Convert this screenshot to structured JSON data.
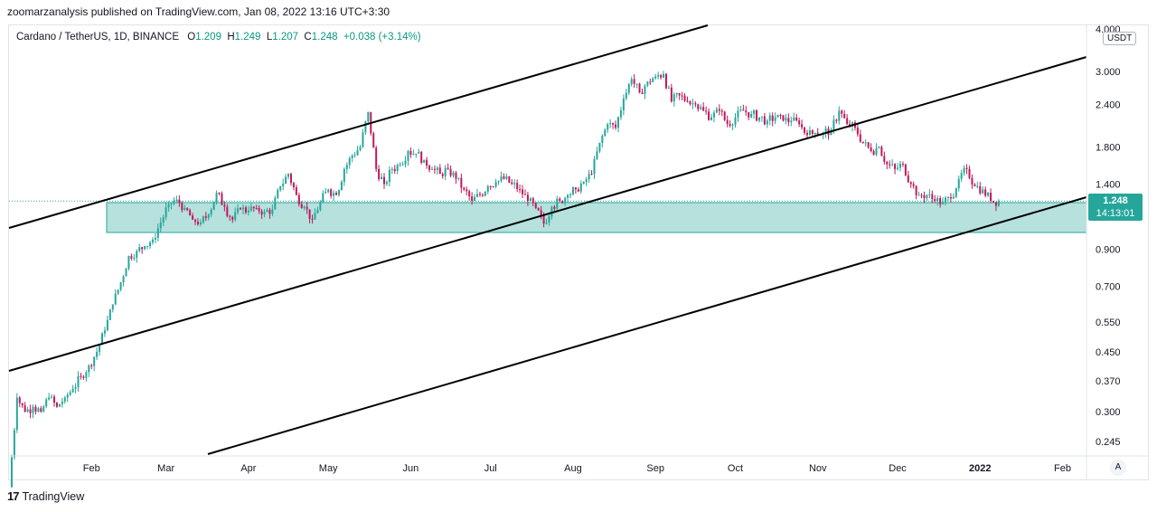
{
  "header": {
    "published_line": "zoomarzanalysis published on TradingView.com, Jan 08, 2022 13:16 UTC+3:30"
  },
  "legend": {
    "symbol": "Cardano / TetherUS, 1D, BINANCE",
    "open_label": "O",
    "open_value": "1.209",
    "high_label": "H",
    "high_value": "1.249",
    "low_label": "L",
    "low_value": "1.207",
    "close_label": "C",
    "close_value": "1.248",
    "change": "+0.038 (+3.14%)"
  },
  "price_axis": {
    "unit": "USDT",
    "current_price": "1.248",
    "countdown": "14:13:01"
  },
  "footer": {
    "brand": "TradingView",
    "auto_scale": "A"
  },
  "colors": {
    "up": "#26a69a",
    "down": "#c2185b",
    "zone_fill": "#b2dfdb",
    "zone_border": "#26a69a",
    "channel_lines": "#000000"
  },
  "chart_data": {
    "type": "candlestick",
    "scale": "log",
    "y_ticks": [
      "4.000",
      "3.000",
      "2.400",
      "1.800",
      "1.400",
      "0.900",
      "0.700",
      "0.550",
      "0.450",
      "0.370",
      "0.300",
      "0.245"
    ],
    "y_tick_values": [
      4.0,
      3.0,
      2.4,
      1.8,
      1.4,
      0.9,
      0.7,
      0.55,
      0.45,
      0.37,
      0.3,
      0.245
    ],
    "x_ticks": [
      {
        "label": "Feb",
        "date": "2021-02-01",
        "bold": false
      },
      {
        "label": "Mar",
        "date": "2021-03-01",
        "bold": false
      },
      {
        "label": "Apr",
        "date": "2021-04-01",
        "bold": false
      },
      {
        "label": "May",
        "date": "2021-05-01",
        "bold": false
      },
      {
        "label": "Jun",
        "date": "2021-06-01",
        "bold": false
      },
      {
        "label": "Jul",
        "date": "2021-07-01",
        "bold": false
      },
      {
        "label": "Aug",
        "date": "2021-08-01",
        "bold": false
      },
      {
        "label": "Sep",
        "date": "2021-09-01",
        "bold": false
      },
      {
        "label": "Oct",
        "date": "2021-10-01",
        "bold": false
      },
      {
        "label": "Nov",
        "date": "2021-11-01",
        "bold": false
      },
      {
        "label": "Dec",
        "date": "2021-12-01",
        "bold": false
      },
      {
        "label": "2022",
        "date": "2022-01-01",
        "bold": true
      },
      {
        "label": "Feb",
        "date": "2022-02-01",
        "bold": false
      }
    ],
    "date_range": [
      "2021-01-01",
      "2022-02-10"
    ],
    "price_range": [
      0.225,
      4.1
    ],
    "last_price": 1.248,
    "close_series": [
      {
        "date": "2021-01-01",
        "close": 0.18
      },
      {
        "date": "2021-01-04",
        "close": 0.33
      },
      {
        "date": "2021-01-07",
        "close": 0.3
      },
      {
        "date": "2021-01-10",
        "close": 0.31
      },
      {
        "date": "2021-01-13",
        "close": 0.3
      },
      {
        "date": "2021-01-16",
        "close": 0.33
      },
      {
        "date": "2021-01-19",
        "close": 0.31
      },
      {
        "date": "2021-01-22",
        "close": 0.33
      },
      {
        "date": "2021-01-25",
        "close": 0.35
      },
      {
        "date": "2021-01-28",
        "close": 0.38
      },
      {
        "date": "2021-01-31",
        "close": 0.41
      },
      {
        "date": "2021-02-03",
        "close": 0.45
      },
      {
        "date": "2021-02-06",
        "close": 0.52
      },
      {
        "date": "2021-02-09",
        "close": 0.62
      },
      {
        "date": "2021-02-12",
        "close": 0.72
      },
      {
        "date": "2021-02-15",
        "close": 0.86
      },
      {
        "date": "2021-02-18",
        "close": 0.89
      },
      {
        "date": "2021-02-21",
        "close": 0.92
      },
      {
        "date": "2021-02-24",
        "close": 0.96
      },
      {
        "date": "2021-02-27",
        "close": 1.08
      },
      {
        "date": "2021-03-02",
        "close": 1.22
      },
      {
        "date": "2021-03-05",
        "close": 1.26
      },
      {
        "date": "2021-03-08",
        "close": 1.19
      },
      {
        "date": "2021-03-11",
        "close": 1.1
      },
      {
        "date": "2021-03-14",
        "close": 1.08
      },
      {
        "date": "2021-03-17",
        "close": 1.14
      },
      {
        "date": "2021-03-20",
        "close": 1.32
      },
      {
        "date": "2021-03-23",
        "close": 1.2
      },
      {
        "date": "2021-03-26",
        "close": 1.1
      },
      {
        "date": "2021-03-29",
        "close": 1.18
      },
      {
        "date": "2021-04-01",
        "close": 1.17
      },
      {
        "date": "2021-04-04",
        "close": 1.19
      },
      {
        "date": "2021-04-07",
        "close": 1.16
      },
      {
        "date": "2021-04-10",
        "close": 1.18
      },
      {
        "date": "2021-04-13",
        "close": 1.38
      },
      {
        "date": "2021-04-16",
        "close": 1.5
      },
      {
        "date": "2021-04-19",
        "close": 1.3
      },
      {
        "date": "2021-04-22",
        "close": 1.2
      },
      {
        "date": "2021-04-25",
        "close": 1.1
      },
      {
        "date": "2021-04-28",
        "close": 1.24
      },
      {
        "date": "2021-05-01",
        "close": 1.35
      },
      {
        "date": "2021-05-04",
        "close": 1.3
      },
      {
        "date": "2021-05-07",
        "close": 1.55
      },
      {
        "date": "2021-05-10",
        "close": 1.7
      },
      {
        "date": "2021-05-13",
        "close": 1.8
      },
      {
        "date": "2021-05-16",
        "close": 2.28
      },
      {
        "date": "2021-05-19",
        "close": 1.55
      },
      {
        "date": "2021-05-22",
        "close": 1.4
      },
      {
        "date": "2021-05-25",
        "close": 1.55
      },
      {
        "date": "2021-05-28",
        "close": 1.6
      },
      {
        "date": "2021-05-31",
        "close": 1.75
      },
      {
        "date": "2021-06-03",
        "close": 1.72
      },
      {
        "date": "2021-06-06",
        "close": 1.65
      },
      {
        "date": "2021-06-09",
        "close": 1.55
      },
      {
        "date": "2021-06-12",
        "close": 1.5
      },
      {
        "date": "2021-06-15",
        "close": 1.55
      },
      {
        "date": "2021-06-18",
        "close": 1.45
      },
      {
        "date": "2021-06-21",
        "close": 1.35
      },
      {
        "date": "2021-06-24",
        "close": 1.25
      },
      {
        "date": "2021-06-27",
        "close": 1.3
      },
      {
        "date": "2021-06-30",
        "close": 1.38
      },
      {
        "date": "2021-07-03",
        "close": 1.42
      },
      {
        "date": "2021-07-06",
        "close": 1.45
      },
      {
        "date": "2021-07-09",
        "close": 1.4
      },
      {
        "date": "2021-07-12",
        "close": 1.35
      },
      {
        "date": "2021-07-15",
        "close": 1.25
      },
      {
        "date": "2021-07-18",
        "close": 1.19
      },
      {
        "date": "2021-07-21",
        "close": 1.07
      },
      {
        "date": "2021-07-24",
        "close": 1.2
      },
      {
        "date": "2021-07-27",
        "close": 1.25
      },
      {
        "date": "2021-07-30",
        "close": 1.3
      },
      {
        "date": "2021-08-02",
        "close": 1.35
      },
      {
        "date": "2021-08-05",
        "close": 1.42
      },
      {
        "date": "2021-08-08",
        "close": 1.5
      },
      {
        "date": "2021-08-11",
        "close": 1.85
      },
      {
        "date": "2021-08-14",
        "close": 2.1
      },
      {
        "date": "2021-08-17",
        "close": 2.05
      },
      {
        "date": "2021-08-20",
        "close": 2.5
      },
      {
        "date": "2021-08-23",
        "close": 2.85
      },
      {
        "date": "2021-08-26",
        "close": 2.6
      },
      {
        "date": "2021-08-29",
        "close": 2.8
      },
      {
        "date": "2021-09-01",
        "close": 2.9
      },
      {
        "date": "2021-09-04",
        "close": 2.95
      },
      {
        "date": "2021-09-07",
        "close": 2.45
      },
      {
        "date": "2021-09-10",
        "close": 2.55
      },
      {
        "date": "2021-09-13",
        "close": 2.45
      },
      {
        "date": "2021-09-16",
        "close": 2.4
      },
      {
        "date": "2021-09-19",
        "close": 2.3
      },
      {
        "date": "2021-09-22",
        "close": 2.2
      },
      {
        "date": "2021-09-25",
        "close": 2.3
      },
      {
        "date": "2021-09-28",
        "close": 2.1
      },
      {
        "date": "2021-10-01",
        "close": 2.2
      },
      {
        "date": "2021-10-04",
        "close": 2.3
      },
      {
        "date": "2021-10-07",
        "close": 2.25
      },
      {
        "date": "2021-10-10",
        "close": 2.2
      },
      {
        "date": "2021-10-13",
        "close": 2.15
      },
      {
        "date": "2021-10-16",
        "close": 2.2
      },
      {
        "date": "2021-10-19",
        "close": 2.15
      },
      {
        "date": "2021-10-22",
        "close": 2.15
      },
      {
        "date": "2021-10-25",
        "close": 2.1
      },
      {
        "date": "2021-10-28",
        "close": 1.95
      },
      {
        "date": "2021-10-31",
        "close": 1.98
      },
      {
        "date": "2021-11-03",
        "close": 1.98
      },
      {
        "date": "2021-11-06",
        "close": 2.02
      },
      {
        "date": "2021-11-09",
        "close": 2.3
      },
      {
        "date": "2021-11-12",
        "close": 2.1
      },
      {
        "date": "2021-11-15",
        "close": 2.05
      },
      {
        "date": "2021-11-18",
        "close": 1.85
      },
      {
        "date": "2021-11-21",
        "close": 1.75
      },
      {
        "date": "2021-11-24",
        "close": 1.8
      },
      {
        "date": "2021-11-27",
        "close": 1.6
      },
      {
        "date": "2021-11-30",
        "close": 1.55
      },
      {
        "date": "2021-12-03",
        "close": 1.6
      },
      {
        "date": "2021-12-06",
        "close": 1.4
      },
      {
        "date": "2021-12-09",
        "close": 1.3
      },
      {
        "date": "2021-12-12",
        "close": 1.3
      },
      {
        "date": "2021-12-15",
        "close": 1.25
      },
      {
        "date": "2021-12-18",
        "close": 1.24
      },
      {
        "date": "2021-12-21",
        "close": 1.27
      },
      {
        "date": "2021-12-24",
        "close": 1.45
      },
      {
        "date": "2021-12-27",
        "close": 1.55
      },
      {
        "date": "2021-12-30",
        "close": 1.38
      },
      {
        "date": "2022-01-02",
        "close": 1.35
      },
      {
        "date": "2022-01-05",
        "close": 1.25
      },
      {
        "date": "2022-01-08",
        "close": 1.248
      }
    ]
  }
}
